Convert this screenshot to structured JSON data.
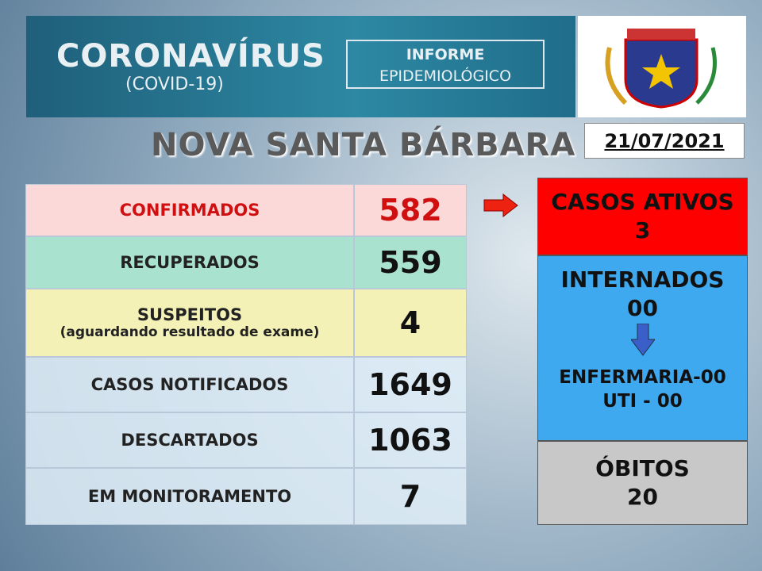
{
  "header": {
    "title": "CORONAVÍRUS",
    "subtitle": "(COVID-19)",
    "badge_line1": "INFORME",
    "badge_line2": "EPIDEMIOLÓGICO"
  },
  "city": "NOVA SANTA BÁRBARA",
  "date": "21/07/2021",
  "table": {
    "rows": [
      {
        "label": "CONFIRMADOS",
        "value": "582"
      },
      {
        "label": "RECUPERADOS",
        "value": "559"
      },
      {
        "label": "SUSPEITOS",
        "note": "(aguardando resultado de exame)",
        "value": "4"
      },
      {
        "label": "CASOS NOTIFICADOS",
        "value": "1649"
      },
      {
        "label": "DESCARTADOS",
        "value": "1063"
      },
      {
        "label": "EM MONITORAMENTO",
        "value": "7"
      }
    ]
  },
  "panel": {
    "active": {
      "label": "CASOS ATIVOS",
      "value": "3"
    },
    "hospitalized": {
      "label": "INTERNADOS",
      "value": "00",
      "ward": "ENFERMARIA-00",
      "icu": "UTI - 00"
    },
    "deaths": {
      "label": "ÓBITOS",
      "value": "20"
    }
  }
}
